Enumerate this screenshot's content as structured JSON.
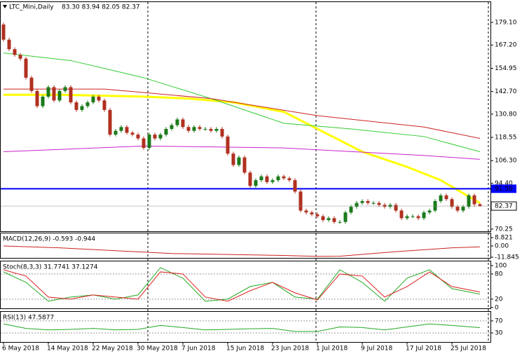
{
  "chart_data": [
    {
      "type": "candlestick",
      "title": "LTC_Mini,Daily",
      "ohlc_label": "83.30 83.94 82.05 82.37",
      "categories": [
        "6 May 2018",
        null,
        null,
        null,
        null,
        null,
        null,
        null,
        "14 May 2018",
        null,
        null,
        null,
        null,
        null,
        null,
        null,
        "22 May 2018",
        null,
        null,
        null,
        null,
        null,
        null,
        null,
        "30 May 2018",
        null,
        null,
        null,
        null,
        null,
        null,
        null,
        "7 Jun 2018",
        null,
        null,
        null,
        null,
        null,
        null,
        null,
        "15 Jun 2018",
        null,
        null,
        null,
        null,
        null,
        null,
        null,
        "23 Jun 2018",
        null,
        null,
        null,
        null,
        null,
        null,
        null,
        "1 Jul 2018",
        null,
        null,
        null,
        null,
        null,
        null,
        null,
        "9 Jul 2018",
        null,
        null,
        null,
        null,
        null,
        null,
        null,
        "17 Jul 2018",
        null,
        null,
        null,
        null,
        null,
        null,
        null,
        "25 Jul 2018",
        null,
        null,
        null,
        null,
        null
      ],
      "open": [
        178,
        170,
        165,
        162,
        160,
        150,
        143,
        135,
        140,
        145,
        138,
        143,
        145,
        137,
        133,
        135,
        137,
        140,
        138,
        133,
        120,
        122,
        124,
        121,
        120,
        118,
        113,
        120,
        118,
        120,
        123,
        125,
        128,
        124,
        122,
        124,
        123,
        123,
        122,
        123,
        119,
        110,
        104,
        108,
        100,
        93,
        96,
        98,
        95,
        96,
        98,
        97,
        96,
        90,
        80,
        79,
        78,
        77,
        75,
        76,
        74,
        74,
        79,
        82,
        84,
        85,
        84,
        84,
        83,
        82,
        83,
        80,
        76,
        77,
        77,
        76,
        79,
        80,
        85,
        88,
        86,
        82,
        80,
        82,
        88,
        83.3
      ],
      "high": [
        179,
        171,
        166,
        163,
        161,
        151,
        144,
        141,
        146,
        146,
        144,
        146,
        146,
        138,
        136,
        138,
        141,
        141,
        139,
        134,
        123,
        125,
        125,
        122,
        121,
        119,
        121,
        121,
        121,
        124,
        126,
        129,
        129,
        125,
        125,
        125,
        124,
        124,
        124,
        124,
        120,
        111,
        109,
        109,
        101,
        97,
        99,
        99,
        97,
        99,
        99,
        98,
        97,
        91,
        81,
        80,
        79,
        78,
        77,
        77,
        75,
        80,
        83,
        85,
        86,
        86,
        85,
        85,
        84,
        84,
        84,
        81,
        78,
        78,
        78,
        80,
        81,
        86,
        89,
        89,
        87,
        83,
        83,
        89,
        89,
        83.94
      ],
      "low": [
        169,
        164,
        161,
        159,
        149,
        142,
        134,
        134,
        139,
        137,
        137,
        142,
        136,
        132,
        132,
        134,
        136,
        137,
        132,
        119,
        119,
        121,
        120,
        119,
        117,
        112,
        112,
        117,
        117,
        119,
        122,
        124,
        123,
        121,
        121,
        122,
        122,
        121,
        121,
        118,
        109,
        103,
        103,
        99,
        92,
        92,
        95,
        94,
        94,
        95,
        96,
        95,
        89,
        79,
        78,
        77,
        76,
        74,
        74,
        73,
        73,
        73,
        78,
        81,
        83,
        83,
        83,
        82,
        81,
        81,
        79,
        75,
        75,
        76,
        75,
        75,
        78,
        79,
        84,
        85,
        81,
        79,
        79,
        81,
        82,
        82.05
      ],
      "close": [
        170,
        165,
        162,
        160,
        150,
        143,
        135,
        140,
        145,
        138,
        143,
        145,
        137,
        133,
        135,
        137,
        140,
        138,
        133,
        120,
        122,
        124,
        121,
        120,
        118,
        113,
        120,
        118,
        120,
        123,
        125,
        128,
        124,
        122,
        124,
        123,
        123,
        122,
        123,
        119,
        110,
        104,
        108,
        100,
        93,
        96,
        98,
        95,
        96,
        98,
        97,
        96,
        90,
        80,
        79,
        78,
        77,
        75,
        76,
        74,
        74,
        79,
        82,
        84,
        85,
        84,
        84,
        83,
        82,
        83,
        80,
        76,
        77,
        77,
        76,
        79,
        80,
        85,
        88,
        86,
        82,
        80,
        82,
        88,
        83.3,
        82.37
      ],
      "up_color": "#1a7a1a",
      "down_color": "#b03020",
      "ylim": [
        69.1,
        189.8
      ],
      "yticks": [
        {
          "value": 179.1,
          "label": "179.10"
        },
        {
          "value": 167.2,
          "label": "167.20"
        },
        {
          "value": 154.95,
          "label": "154.95"
        },
        {
          "value": 142.7,
          "label": "142.70"
        },
        {
          "value": 130.8,
          "label": "130.80"
        },
        {
          "value": 118.55,
          "label": "118.55"
        },
        {
          "value": 106.3,
          "label": "106.30"
        },
        {
          "value": 94.4,
          "label": "94.40"
        },
        {
          "value": 70.25,
          "label": "70.25"
        }
      ],
      "hline": {
        "value": 91.5,
        "label": "91.50",
        "color": "#0000ff"
      },
      "series": [
        {
          "color": "#ffff00",
          "width": 3,
          "x": [
            0,
            10,
            25,
            33,
            41,
            50,
            56,
            64,
            72,
            78,
            85
          ],
          "values": [
            141,
            141,
            140,
            139,
            137,
            132,
            123,
            111,
            103,
            96,
            84
          ]
        },
        {
          "color": "#33cc33",
          "width": 1,
          "x": [
            0,
            12,
            25,
            37,
            50,
            62,
            75,
            85
          ],
          "values": [
            163,
            159,
            150,
            139,
            126,
            123,
            119,
            111
          ]
        },
        {
          "color": "#cc2222",
          "width": 1,
          "x": [
            0,
            18,
            37,
            56,
            75,
            85
          ],
          "values": [
            144,
            144,
            139,
            130,
            124,
            118
          ]
        },
        {
          "color": "#cc22cc",
          "width": 1,
          "x": [
            0,
            25,
            50,
            75,
            85
          ],
          "values": [
            111,
            114,
            113,
            109,
            107
          ]
        }
      ]
    },
    {
      "type": "line",
      "title": "MACD(12,26,9) -0.593 -0.944",
      "ylim": [
        -12.6,
        13.3
      ],
      "yticks": [
        8.821,
        {
          "value": 0,
          "label": "0.00"
        },
        -11.845
      ],
      "series": [
        {
          "color": "#cc2222",
          "width": 1,
          "x": [
            0,
            10,
            20,
            30,
            40,
            50,
            56,
            60,
            70,
            80,
            85
          ],
          "values": [
            0,
            -2,
            -5,
            -8,
            -9,
            -10,
            -11,
            -10.8,
            -6,
            -2,
            -0.944
          ]
        }
      ]
    },
    {
      "type": "line",
      "title": "Stoch(8,3,3) 31.7741 37.1274",
      "ylim": [
        -2,
        110
      ],
      "yticks": [
        100,
        80,
        20,
        0
      ],
      "levels": [
        80,
        20
      ],
      "series": [
        {
          "color": "#22aa22",
          "width": 1,
          "x": [
            0,
            4,
            8,
            12,
            16,
            20,
            24,
            28,
            32,
            36,
            40,
            44,
            48,
            52,
            56,
            60,
            64,
            68,
            72,
            76,
            80,
            85
          ],
          "values": [
            85,
            60,
            15,
            25,
            30,
            20,
            30,
            95,
            70,
            15,
            20,
            50,
            60,
            25,
            20,
            90,
            60,
            15,
            70,
            90,
            45,
            31.7741
          ]
        },
        {
          "color": "#dd2222",
          "width": 1,
          "x": [
            0,
            4,
            8,
            12,
            16,
            20,
            24,
            28,
            32,
            36,
            40,
            44,
            48,
            52,
            56,
            60,
            64,
            68,
            72,
            76,
            80,
            85
          ],
          "values": [
            90,
            75,
            25,
            20,
            30,
            25,
            20,
            85,
            80,
            25,
            15,
            40,
            60,
            35,
            18,
            80,
            75,
            25,
            50,
            85,
            50,
            37.1274
          ]
        }
      ]
    },
    {
      "type": "line",
      "title": "RSI(13) 47.5877",
      "ylim": [
        0,
        100
      ],
      "yticks": [
        70,
        30
      ],
      "levels": [
        70,
        30
      ],
      "series": [
        {
          "color": "#22aa22",
          "width": 1,
          "x": [
            0,
            4,
            8,
            12,
            16,
            20,
            24,
            28,
            32,
            36,
            40,
            44,
            48,
            52,
            56,
            60,
            64,
            68,
            72,
            76,
            80,
            85
          ],
          "values": [
            60,
            45,
            40,
            42,
            45,
            40,
            42,
            55,
            48,
            40,
            42,
            44,
            45,
            35,
            35,
            50,
            48,
            40,
            50,
            60,
            55,
            47.5877
          ]
        }
      ]
    }
  ]
}
